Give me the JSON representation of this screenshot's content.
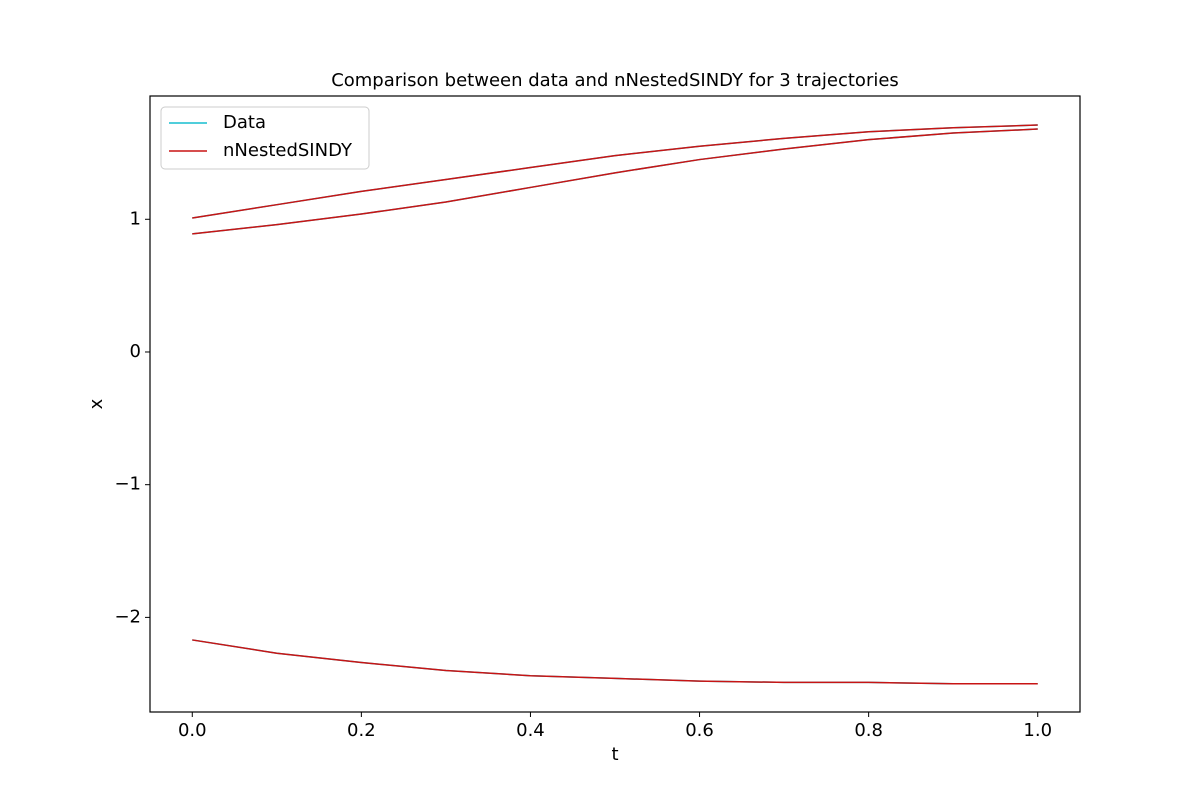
{
  "chart_data": {
    "type": "line",
    "title": "Comparison between data and nNestedSINDY for 3 trajectories",
    "xlabel": "t",
    "ylabel": "x",
    "x": [
      0,
      0.1,
      0.2,
      0.3,
      0.4,
      0.5,
      0.6,
      0.7,
      0.8,
      0.9,
      1
    ],
    "series": [
      {
        "name": "Data",
        "color": "#17becf",
        "values": [
          [
            1.01,
            1.11,
            1.21,
            1.3,
            1.39,
            1.48,
            1.55,
            1.61,
            1.66,
            1.69,
            1.71
          ],
          [
            0.89,
            0.96,
            1.04,
            1.13,
            1.24,
            1.35,
            1.45,
            1.53,
            1.6,
            1.65,
            1.68
          ],
          [
            -2.17,
            -2.27,
            -2.34,
            -2.4,
            -2.44,
            -2.46,
            -2.48,
            -2.49,
            -2.49,
            -2.5,
            -2.5
          ]
        ]
      },
      {
        "name": "nNestedSINDY",
        "color": "#c81414",
        "values": [
          [
            1.01,
            1.11,
            1.21,
            1.3,
            1.39,
            1.48,
            1.55,
            1.61,
            1.66,
            1.69,
            1.71
          ],
          [
            0.89,
            0.96,
            1.04,
            1.13,
            1.24,
            1.35,
            1.45,
            1.53,
            1.6,
            1.65,
            1.68
          ],
          [
            -2.17,
            -2.27,
            -2.34,
            -2.4,
            -2.44,
            -2.46,
            -2.48,
            -2.49,
            -2.49,
            -2.5,
            -2.5
          ]
        ]
      }
    ],
    "xlim": [
      -0.05,
      1.05
    ],
    "xticks": [
      {
        "value": 0,
        "label": "0.0"
      },
      0.2,
      0.4,
      0.6,
      0.8,
      {
        "value": 1,
        "label": "1.0"
      }
    ],
    "ylim": [
      -2.713,
      1.929
    ],
    "yticks": [
      {
        "value": -2,
        "label": "−2"
      },
      {
        "value": -1,
        "label": "−1"
      },
      0,
      1
    ],
    "grid": false,
    "legend": "upper left"
  }
}
